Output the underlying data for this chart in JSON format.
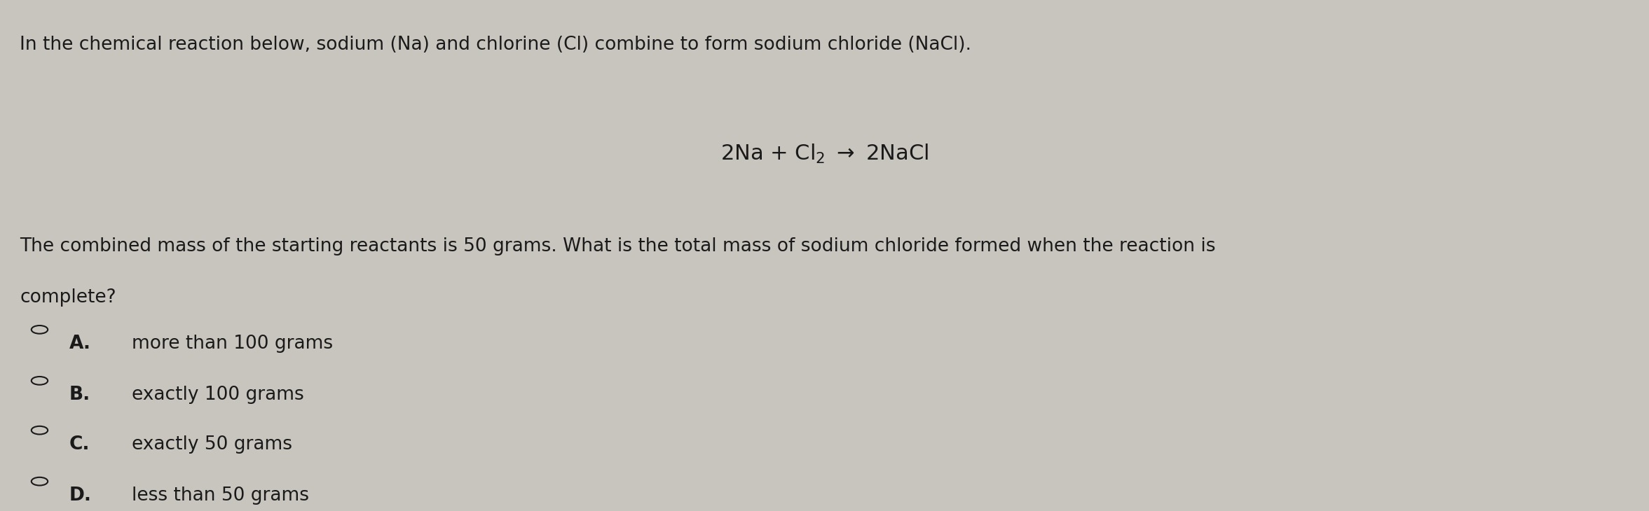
{
  "background_color": "#c8c4be",
  "text_color": "#1a1a1a",
  "intro_line": "In the chemical reaction below, sodium (Na) and chlorine (Cl) combine to form sodium chloride (NaCl).",
  "equation": "2Na + Cl$_2$ $\\rightarrow$ 2NaCl",
  "question_line1": "The combined mass of the starting reactants is 50 grams. What is the total mass of sodium chloride formed when the reaction is",
  "question_line2": "complete?",
  "options": [
    {
      "label": "A.",
      "text": "more than 100 grams"
    },
    {
      "label": "B.",
      "text": "exactly 100 grams"
    },
    {
      "label": "C.",
      "text": "exactly 50 grams"
    },
    {
      "label": "D.",
      "text": "less than 50 grams"
    }
  ],
  "font_size_intro": 19,
  "font_size_equation": 22,
  "font_size_question": 19,
  "font_size_options": 19,
  "figsize": [
    23.53,
    7.3
  ],
  "dpi": 100
}
